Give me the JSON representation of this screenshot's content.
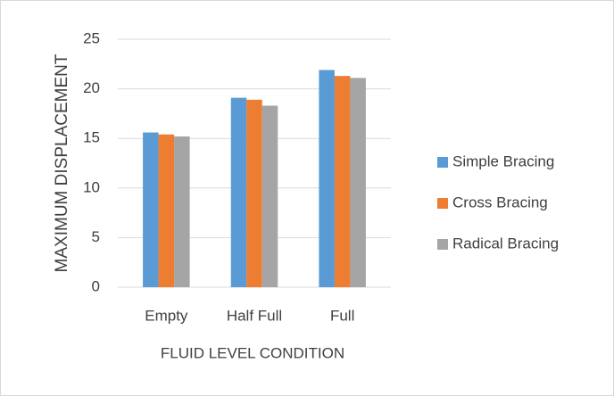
{
  "chart_data": {
    "type": "bar",
    "categories": [
      "Empty",
      "Half Full",
      "Full"
    ],
    "series": [
      {
        "name": "Simple Bracing",
        "color": "#5b9bd5",
        "values": [
          15.6,
          19.1,
          21.9
        ]
      },
      {
        "name": "Cross Bracing",
        "color": "#ed7d31",
        "values": [
          15.4,
          18.9,
          21.3
        ]
      },
      {
        "name": "Radical Bracing",
        "color": "#a5a5a5",
        "values": [
          15.2,
          18.3,
          21.1
        ]
      }
    ],
    "xlabel": "FLUID LEVEL CONDITION",
    "ylabel": "MAXIMUM DISPLACEMENT",
    "ylim": [
      0,
      25
    ],
    "yticks": [
      0,
      5,
      10,
      15,
      20,
      25
    ],
    "grid": true,
    "legend": "right"
  }
}
